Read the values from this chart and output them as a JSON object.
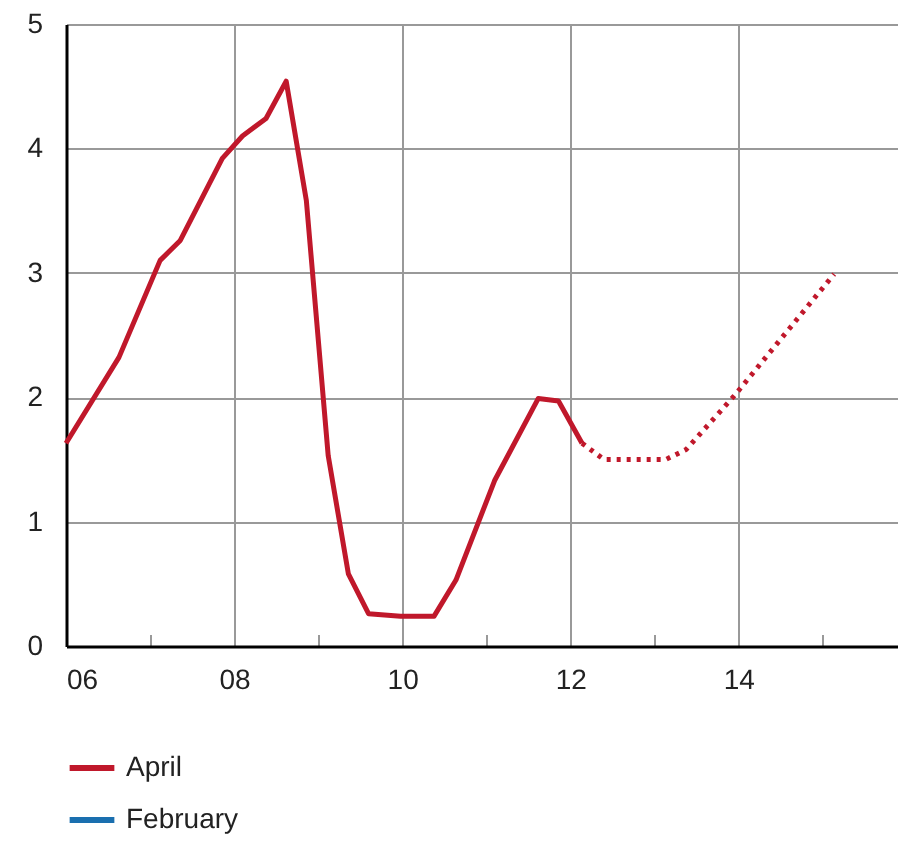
{
  "chart_data": {
    "type": "line",
    "xlim": [
      2006,
      2015.9
    ],
    "ylim": [
      0,
      5
    ],
    "xticks": [
      {
        "value": 2006,
        "label": "06"
      },
      {
        "value": 2007,
        "label": null
      },
      {
        "value": 2008,
        "label": "08"
      },
      {
        "value": 2009,
        "label": null
      },
      {
        "value": 2010,
        "label": "10"
      },
      {
        "value": 2011,
        "label": null
      },
      {
        "value": 2012,
        "label": "12"
      },
      {
        "value": 2013,
        "label": null
      },
      {
        "value": 2014,
        "label": "14"
      },
      {
        "value": 2015,
        "label": null
      }
    ],
    "yticks": [
      0,
      1,
      2,
      3,
      4,
      5
    ],
    "grid": true,
    "legend": "bottom",
    "series": [
      {
        "name": "April",
        "color": "#c0182b",
        "line_style": "solid",
        "x": [
          2006.0,
          2006.63,
          2007.12,
          2007.36,
          2007.86,
          2008.1,
          2008.38,
          2008.62,
          2008.86,
          2009.12,
          2009.36,
          2009.6,
          2009.98,
          2010.38,
          2010.64,
          2011.1,
          2011.62,
          2011.86,
          2012.14
        ],
        "values": [
          1.63,
          2.32,
          3.1,
          3.26,
          3.92,
          4.1,
          4.24,
          4.54,
          3.58,
          1.53,
          0.58,
          0.26,
          0.24,
          0.24,
          0.53,
          1.33,
          1.99,
          1.97,
          1.63
        ]
      },
      {
        "color": "#c0182b",
        "line_style": "dotted",
        "x": [
          2012.14,
          2012.4,
          2013.14,
          2013.38,
          2013.95,
          2015.14
        ],
        "values": [
          1.63,
          1.5,
          1.5,
          1.58,
          2.01,
          2.99
        ]
      },
      {
        "name": "February",
        "color": "#1a6faf",
        "line_style": "solid"
      }
    ]
  }
}
